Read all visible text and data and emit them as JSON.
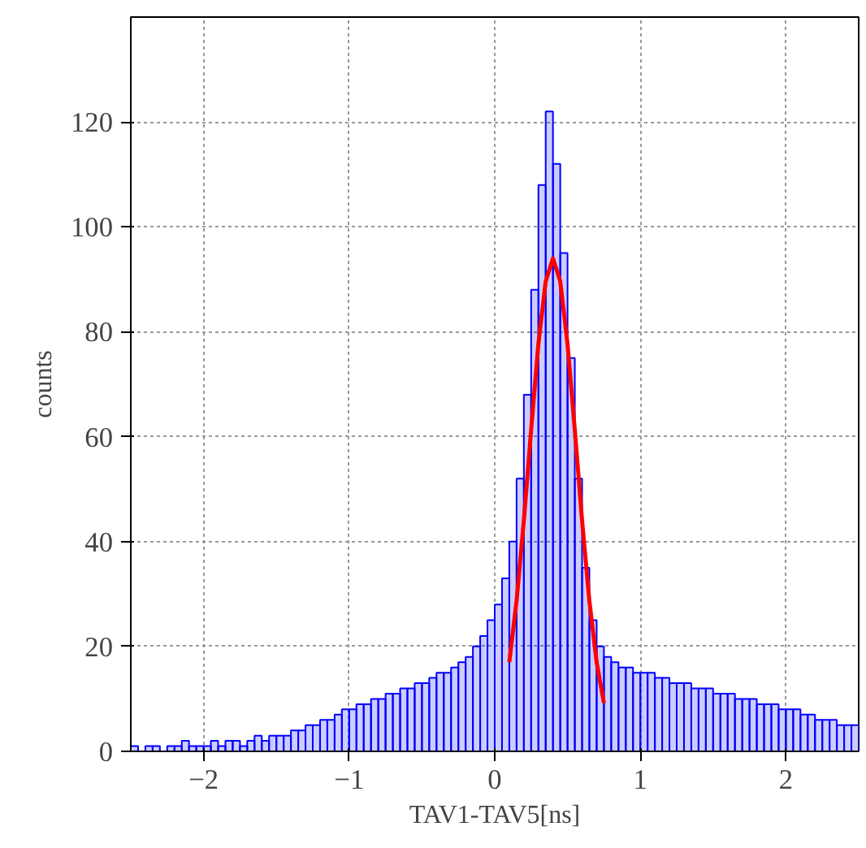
{
  "chart_data": {
    "type": "histogram",
    "xlabel": "TAV1-TAV5[ns]",
    "ylabel": "counts",
    "xlim": [
      -2.5,
      2.5
    ],
    "ylim": [
      0,
      140
    ],
    "xticks": [
      -2,
      -1,
      0,
      1,
      2
    ],
    "yticks": [
      0,
      20,
      40,
      60,
      80,
      100,
      120
    ],
    "grid": true,
    "bins": [
      -2.5,
      -2.45,
      -2.4,
      -2.35,
      -2.3,
      -2.25,
      -2.2,
      -2.15,
      -2.1,
      -2.05,
      -2.0,
      -1.95,
      -1.9,
      -1.85,
      -1.8,
      -1.75,
      -1.7,
      -1.65,
      -1.6,
      -1.55,
      -1.5,
      -1.45,
      -1.4,
      -1.35,
      -1.3,
      -1.25,
      -1.2,
      -1.15,
      -1.1,
      -1.05,
      -1.0,
      -0.95,
      -0.9,
      -0.85,
      -0.8,
      -0.75,
      -0.7,
      -0.65,
      -0.6,
      -0.55,
      -0.5,
      -0.45,
      -0.4,
      -0.35,
      -0.3,
      -0.25,
      -0.2,
      -0.15,
      -0.1,
      -0.05,
      0.0,
      0.05,
      0.1,
      0.15,
      0.2,
      0.25,
      0.3,
      0.35,
      0.4,
      0.45,
      0.5,
      0.55,
      0.6,
      0.65,
      0.7,
      0.75,
      0.8,
      0.85,
      0.9,
      0.95,
      1.0,
      1.05,
      1.1,
      1.15,
      1.2,
      1.25,
      1.3,
      1.35,
      1.4,
      1.45,
      1.5,
      1.55,
      1.6,
      1.65,
      1.7,
      1.75,
      1.8,
      1.85,
      1.9,
      1.95,
      2.0,
      2.05,
      2.1,
      2.15,
      2.2,
      2.25,
      2.3,
      2.35,
      2.4,
      2.45,
      2.5
    ],
    "series": [
      {
        "color": "#0000ff",
        "values": [
          1,
          0,
          1,
          1,
          0,
          1,
          1,
          2,
          1,
          1,
          1,
          2,
          1,
          2,
          2,
          1,
          2,
          3,
          2,
          3,
          3,
          3,
          4,
          4,
          5,
          5,
          6,
          6,
          7,
          8,
          8,
          9,
          9,
          10,
          10,
          11,
          11,
          12,
          12,
          13,
          13,
          14,
          15,
          15,
          16,
          17,
          18,
          20,
          22,
          25,
          28,
          33,
          40,
          52,
          68,
          88,
          108,
          122,
          112,
          95,
          75,
          52,
          35,
          25,
          20,
          18,
          17,
          16,
          16,
          15,
          15,
          15,
          14,
          14,
          13,
          13,
          13,
          12,
          12,
          12,
          11,
          11,
          11,
          10,
          10,
          10,
          9,
          9,
          9,
          8,
          8,
          8,
          7,
          7,
          6,
          6,
          6,
          5,
          5,
          5
        ]
      },
      {
        "type": "line",
        "color": "#ff0000",
        "x": [
          0.1,
          0.15,
          0.2,
          0.25,
          0.3,
          0.35,
          0.4,
          0.45,
          0.5,
          0.55,
          0.6,
          0.65,
          0.7,
          0.75
        ],
        "values": [
          17.0,
          28.7,
          44.0,
          61.3,
          77.7,
          89.6,
          94,
          89.6,
          77.7,
          61.3,
          44.0,
          28.7,
          17.0,
          9.2
        ]
      }
    ]
  }
}
